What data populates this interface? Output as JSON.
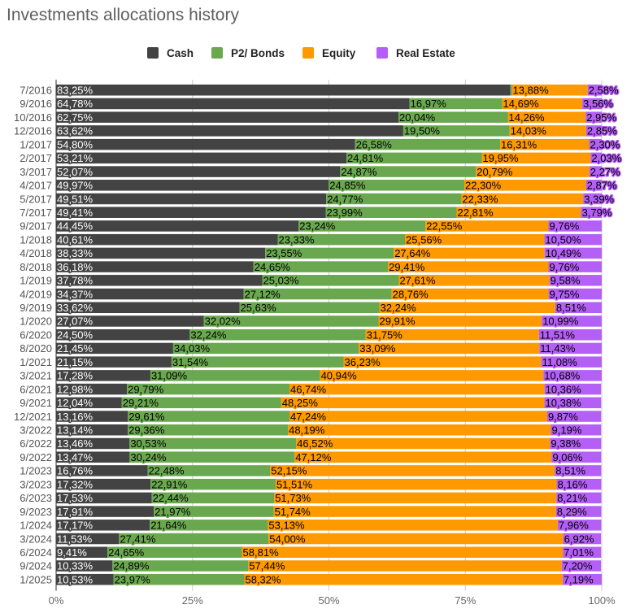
{
  "chart_data": {
    "type": "bar",
    "orientation": "horizontal",
    "stacked": "percent",
    "title": "Investments allocations history",
    "xlabel": "",
    "ylabel": "",
    "xlim": [
      0,
      100
    ],
    "x_ticks": [
      "0%",
      "25%",
      "50%",
      "75%",
      "100%"
    ],
    "grid": true,
    "legend_position": "top",
    "categories": [
      "7/2016",
      "9/2016",
      "10/2016",
      "12/2016",
      "1/2017",
      "2/2017",
      "3/2017",
      "4/2017",
      "5/2017",
      "7/2017",
      "9/2017",
      "1/2018",
      "4/2018",
      "8/2018",
      "1/2019",
      "4/2019",
      "9/2019",
      "1/2020",
      "6/2020",
      "8/2020",
      "1/2021",
      "3/2021",
      "6/2021",
      "9/2021",
      "12/2021",
      "3/2022",
      "6/2022",
      "9/2022",
      "1/2023",
      "3/2023",
      "6/2023",
      "9/2023",
      "1/2024",
      "3/2024",
      "6/2024",
      "9/2024",
      "1/2025"
    ],
    "series": [
      {
        "name": "Cash",
        "color": "#434343",
        "label_color": "#ffffff",
        "values": [
          83.25,
          64.78,
          62.75,
          63.62,
          54.8,
          53.21,
          52.07,
          49.97,
          49.51,
          49.41,
          44.45,
          40.61,
          38.33,
          36.18,
          37.78,
          34.37,
          33.62,
          27.07,
          24.5,
          21.45,
          21.15,
          17.28,
          12.98,
          12.04,
          13.16,
          13.14,
          13.46,
          13.47,
          16.76,
          17.32,
          17.53,
          17.91,
          17.17,
          11.53,
          9.41,
          10.33,
          10.53
        ]
      },
      {
        "name": "P2/ Bonds",
        "color": "#6aa84f",
        "label_color": "#000000",
        "values": [
          0.29,
          16.97,
          20.04,
          19.5,
          26.58,
          24.81,
          24.87,
          24.85,
          24.77,
          23.99,
          23.24,
          23.33,
          23.55,
          24.65,
          25.03,
          27.12,
          25.63,
          32.02,
          32.24,
          34.03,
          31.54,
          31.09,
          29.79,
          29.21,
          29.61,
          29.36,
          30.53,
          30.24,
          22.48,
          22.91,
          22.44,
          21.97,
          21.64,
          27.41,
          24.65,
          24.89,
          23.97
        ]
      },
      {
        "name": "Equity",
        "color": "#ff9900",
        "label_color": "#000000",
        "values": [
          13.88,
          14.69,
          14.26,
          14.03,
          16.31,
          19.95,
          20.79,
          22.3,
          22.33,
          22.81,
          22.55,
          25.56,
          27.64,
          29.41,
          27.61,
          28.76,
          32.24,
          29.91,
          31.75,
          33.09,
          36.23,
          40.94,
          46.74,
          48.25,
          47.24,
          48.19,
          46.52,
          47.12,
          52.15,
          51.51,
          51.73,
          51.74,
          53.13,
          54.0,
          58.81,
          57.44,
          58.32
        ]
      },
      {
        "name": "Real Estate",
        "color": "#b45ff6",
        "label_color": "#000000",
        "values": [
          2.58,
          3.56,
          2.95,
          2.85,
          2.3,
          2.03,
          2.27,
          2.87,
          3.39,
          3.79,
          9.76,
          10.5,
          10.49,
          9.76,
          9.58,
          9.75,
          8.51,
          10.99,
          11.51,
          11.43,
          11.08,
          10.68,
          10.36,
          10.38,
          9.87,
          9.19,
          9.38,
          9.06,
          8.51,
          8.16,
          8.21,
          8.29,
          7.96,
          6.92,
          7.01,
          7.2,
          7.19
        ]
      }
    ],
    "hidden_labels": [
      [
        0,
        1
      ]
    ]
  }
}
